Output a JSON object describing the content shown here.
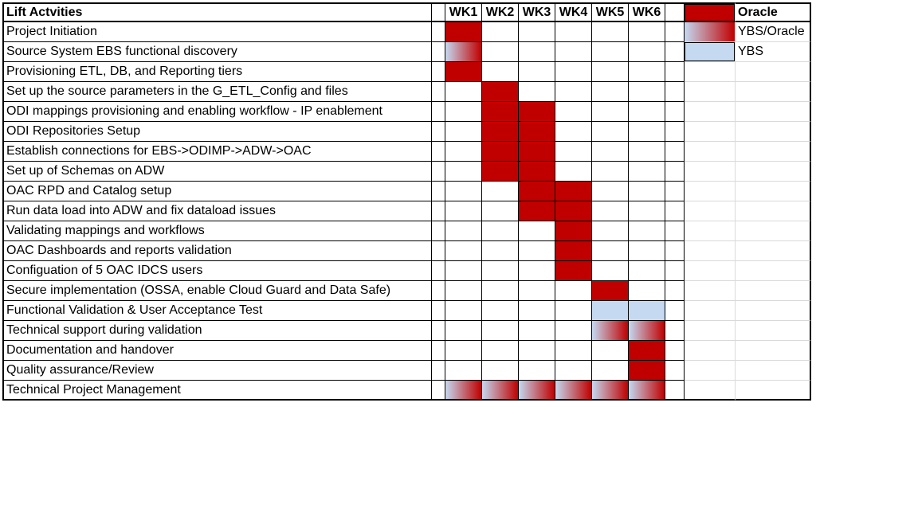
{
  "header": {
    "activity_label": "Lift Actvities",
    "weeks": [
      "WK1",
      "WK2",
      "WK3",
      "WK4",
      "WK5",
      "WK6"
    ]
  },
  "legend": [
    {
      "label": "Oracle",
      "fill": "oracle"
    },
    {
      "label": "YBS/Oracle",
      "fill": "mixed"
    },
    {
      "label": "YBS",
      "fill": "ybs"
    }
  ],
  "colors": {
    "oracle": "#c00000",
    "ybs": "#c5d9f1",
    "mixed": "gradient #c5d9f1 to #c00000"
  },
  "activities": [
    {
      "name": "Project Initiation",
      "weeks": [
        "oracle",
        "",
        "",
        "",
        "",
        ""
      ]
    },
    {
      "name": "Source System EBS functional discovery",
      "weeks": [
        "mixed",
        "",
        "",
        "",
        "",
        ""
      ]
    },
    {
      "name": "Provisioning ETL, DB, and Reporting tiers",
      "weeks": [
        "oracle",
        "",
        "",
        "",
        "",
        ""
      ]
    },
    {
      "name": "Set up the source parameters in the G_ETL_Config and files",
      "weeks": [
        "",
        "oracle",
        "",
        "",
        "",
        ""
      ]
    },
    {
      "name": "ODI mappings provisioning and enabling workflow - IP enablement",
      "weeks": [
        "",
        "oracle",
        "oracle",
        "",
        "",
        ""
      ]
    },
    {
      "name": "ODI Repositories Setup",
      "weeks": [
        "",
        "oracle",
        "oracle",
        "",
        "",
        ""
      ]
    },
    {
      "name": "Establish connections for EBS->ODIMP->ADW->OAC",
      "weeks": [
        "",
        "oracle",
        "oracle",
        "",
        "",
        ""
      ]
    },
    {
      "name": "Set up of Schemas on ADW",
      "weeks": [
        "",
        "oracle",
        "oracle",
        "",
        "",
        ""
      ]
    },
    {
      "name": "OAC RPD and Catalog setup",
      "weeks": [
        "",
        "",
        "oracle",
        "oracle",
        "",
        ""
      ]
    },
    {
      "name": "Run data load into ADW and fix dataload issues",
      "weeks": [
        "",
        "",
        "oracle",
        "oracle",
        "",
        ""
      ]
    },
    {
      "name": "Validating mappings and workflows",
      "weeks": [
        "",
        "",
        "",
        "oracle",
        "",
        ""
      ]
    },
    {
      "name": "OAC Dashboards and reports validation",
      "weeks": [
        "",
        "",
        "",
        "oracle",
        "",
        ""
      ]
    },
    {
      "name": "Configuation of 5 OAC IDCS users",
      "weeks": [
        "",
        "",
        "",
        "oracle",
        "",
        ""
      ]
    },
    {
      "name": "Secure implementation (OSSA, enable Cloud Guard and Data Safe)",
      "weeks": [
        "",
        "",
        "",
        "",
        "oracle",
        ""
      ]
    },
    {
      "name": "Functional Validation & User Acceptance Test",
      "weeks": [
        "",
        "",
        "",
        "",
        "ybs",
        "ybs"
      ]
    },
    {
      "name": "Technical support during validation",
      "weeks": [
        "",
        "",
        "",
        "",
        "mixed",
        "mixed"
      ]
    },
    {
      "name": "Documentation and handover",
      "weeks": [
        "",
        "",
        "",
        "",
        "",
        "oracle"
      ]
    },
    {
      "name": "Quality assurance/Review",
      "weeks": [
        "",
        "",
        "",
        "",
        "",
        "oracle"
      ]
    },
    {
      "name": "Technical Project Management",
      "weeks": [
        "mixed",
        "mixed",
        "mixed",
        "mixed",
        "mixed",
        "mixed"
      ]
    }
  ]
}
